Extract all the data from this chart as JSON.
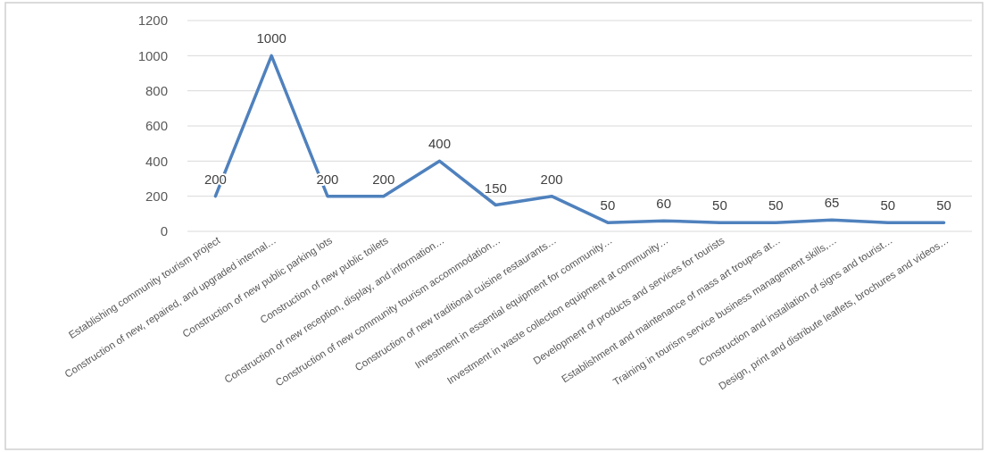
{
  "chart_data": {
    "type": "line",
    "categories": [
      "Establishing community tourism project",
      "Construction of new, repaired, and upgraded internal…",
      "Construction of new public parking lots",
      "Construction of new public toilets",
      "Construction of new reception, display, and information…",
      "Construction of new community tourism accommodation…",
      "Construction of new traditional cuisine restaurants…",
      "Investment in essential equipment for community…",
      "Investment in waste collection equipment at community…",
      "Development of products and services for tourists",
      "Establishment and maintenance of mass art troupes at…",
      "Training in tourism service business management skills,…",
      "Construction and installation of signs and tourist…",
      "Design, print and distribute leaflets, brochures and videos…"
    ],
    "series": [
      {
        "color": "#4f81bd",
        "values": [
          200,
          1000,
          200,
          200,
          400,
          150,
          200,
          50,
          60,
          50,
          50,
          65,
          50,
          50
        ]
      }
    ],
    "ylim": [
      0,
      1200
    ],
    "yticks": [
      0,
      200,
      400,
      600,
      800,
      1000,
      1200
    ],
    "grid": "y",
    "data_labels": true
  }
}
